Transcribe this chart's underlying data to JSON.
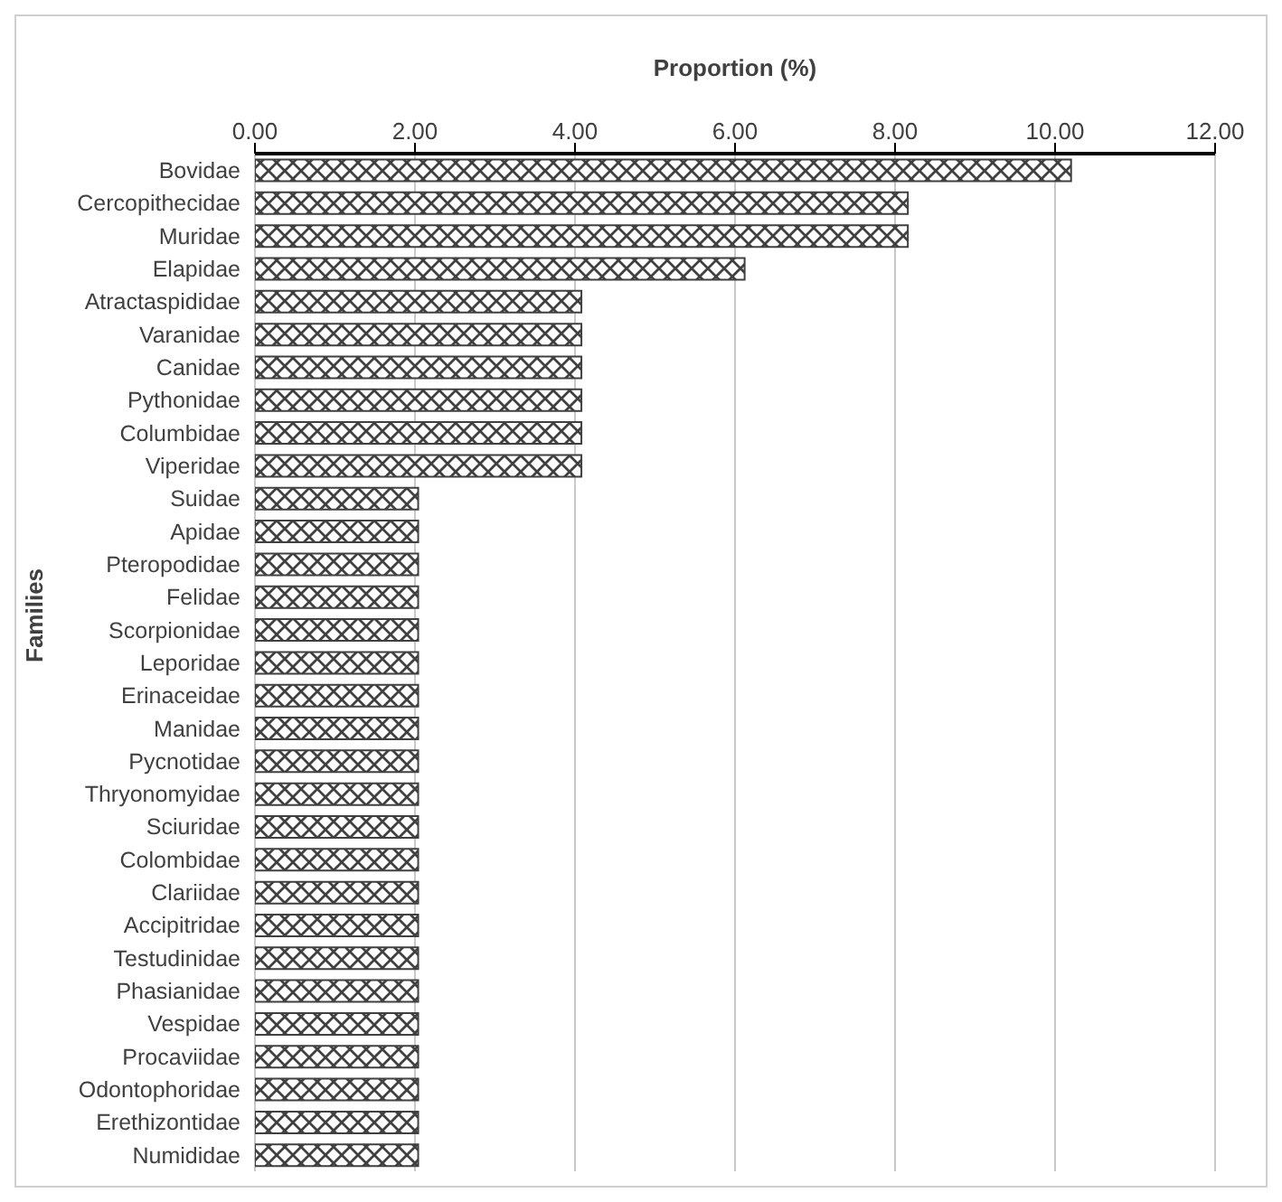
{
  "chart_data": {
    "type": "bar",
    "orientation": "horizontal",
    "xlabel": "Proportion (%)",
    "ylabel": "Families",
    "categories": [
      "Bovidae",
      "Cercopithecidae",
      "Muridae",
      "Elapidae",
      "Atractaspididae",
      "Varanidae",
      "Canidae",
      "Pythonidae",
      "Columbidae",
      "Viperidae",
      "Suidae",
      "Apidae",
      "Pteropodidae",
      "Felidae",
      "Scorpionidae",
      "Leporidae",
      "Erinaceidae",
      "Manidae",
      "Pycnotidae",
      "Thryonomyidae",
      "Sciuridae",
      "Colombidae",
      "Clariidae",
      "Accipitridae",
      "Testudinidae",
      "Phasianidae",
      "Vespidae",
      "Procaviidae",
      "Odontophoridae",
      "Erethizontidae",
      "Numididae"
    ],
    "values": [
      10.2,
      8.16,
      8.16,
      6.12,
      4.08,
      4.08,
      4.08,
      4.08,
      4.08,
      4.08,
      2.04,
      2.04,
      2.04,
      2.04,
      2.04,
      2.04,
      2.04,
      2.04,
      2.04,
      2.04,
      2.04,
      2.04,
      2.04,
      2.04,
      2.04,
      2.04,
      2.04,
      2.04,
      2.04,
      2.04,
      2.04
    ],
    "color": "#404040",
    "xlim": [
      0,
      12
    ],
    "xticks": [
      {
        "value": 0,
        "label": "0.00"
      },
      {
        "value": 2,
        "label": "2.00"
      },
      {
        "value": 4,
        "label": "4.00"
      },
      {
        "value": 6,
        "label": "6.00"
      },
      {
        "value": 8,
        "label": "8.00"
      },
      {
        "value": 10,
        "label": "10.00"
      },
      {
        "value": 12,
        "label": "12.00"
      }
    ],
    "grid": "x"
  }
}
